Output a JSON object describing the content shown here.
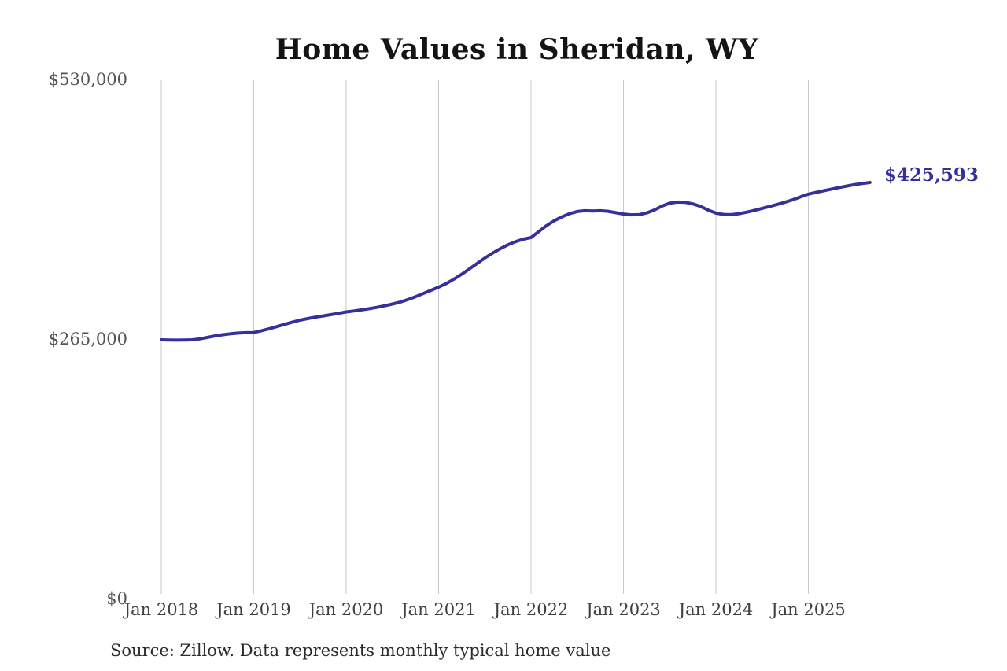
{
  "title": "Home Values in Sheridan, WY",
  "end_label": "$425,593",
  "source_note": "Source: Zillow. Data represents monthly typical home value",
  "colors": {
    "line": "#36309a",
    "end_label": "#36309a",
    "grid": "#c9c9c9",
    "title": "#141414",
    "y_axis_text": "#545454",
    "x_axis_text": "#3f3f3f",
    "source_text": "#2b2b2b",
    "background": "#ffffff"
  },
  "chart_data": {
    "type": "line",
    "title": "Home Values in Sheridan, WY",
    "xlabel": "",
    "ylabel": "",
    "unit": "USD",
    "ylim": [
      0,
      530000
    ],
    "grid": "vertical-only",
    "legend": "none",
    "start_month": "2018-01",
    "end_month": "2025-09",
    "final_value": 425593,
    "x_tick_labels": [
      "Jan 2018",
      "Jan 2019",
      "Jan 2020",
      "Jan 2021",
      "Jan 2022",
      "Jan 2023",
      "Jan 2024",
      "Jan 2025"
    ],
    "y_ticks": [
      {
        "label": "$0",
        "value": 0
      },
      {
        "label": "$265,000",
        "value": 265000
      },
      {
        "label": "$530,000",
        "value": 530000
      }
    ],
    "values": [
      265000,
      264800,
      264700,
      264800,
      265000,
      266000,
      267500,
      269000,
      270200,
      271200,
      271900,
      272300,
      272500,
      274300,
      276300,
      278500,
      280800,
      283000,
      285100,
      286700,
      288100,
      289400,
      290700,
      292100,
      293500,
      294500,
      295600,
      296800,
      298200,
      299800,
      301500,
      303500,
      306000,
      309000,
      312200,
      315500,
      318800,
      322500,
      327000,
      332000,
      337500,
      343000,
      348500,
      353500,
      358000,
      362000,
      365200,
      367800,
      369400,
      375500,
      381500,
      386500,
      390500,
      393800,
      396000,
      396800,
      396500,
      396800,
      396200,
      394800,
      393400,
      392600,
      392800,
      394500,
      397500,
      401500,
      404500,
      405600,
      405400,
      403800,
      401200,
      397400,
      394400,
      393000,
      392800,
      393800,
      395300,
      397200,
      399200,
      401200,
      403300,
      405500,
      408000,
      410900,
      413700,
      415500,
      417200,
      418900,
      420500,
      422000,
      423400,
      424600,
      425593
    ]
  }
}
